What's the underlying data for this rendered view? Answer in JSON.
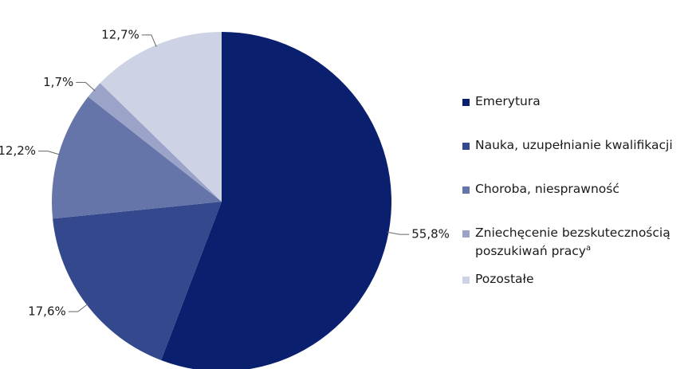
{
  "chart_data": {
    "type": "pie",
    "categories": [
      "Emerytura",
      "Nauka, uzupełnianie kwalifikacji",
      "Choroba, niesprawność",
      "Zniechęcenie bezskutecznością poszukiwań pracy",
      "Pozostałe"
    ],
    "category_notes": [
      null,
      null,
      null,
      "a",
      null
    ],
    "values": [
      55.8,
      17.6,
      12.2,
      1.7,
      12.7
    ],
    "value_labels": [
      "55,8%",
      "17,6%",
      "12,2%",
      "1,7%",
      "12,7%"
    ],
    "colors": [
      "#0b1f6f",
      "#33488d",
      "#6574a9",
      "#9ba4c8",
      "#cdd2e4"
    ],
    "legend": "right"
  }
}
